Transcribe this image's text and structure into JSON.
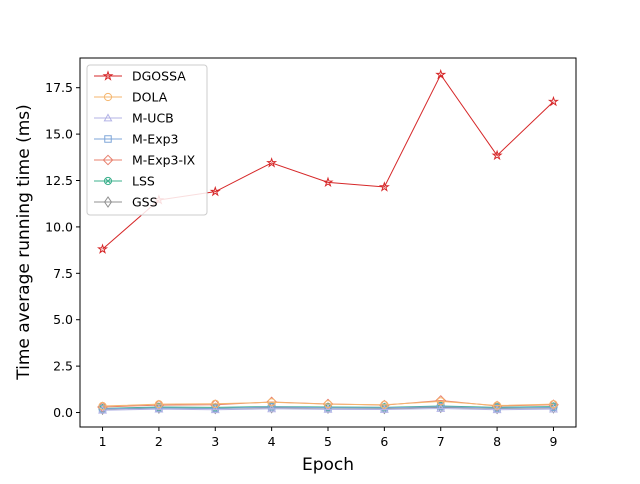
{
  "chart_data": {
    "type": "line",
    "title": "",
    "xlabel": "Epoch",
    "ylabel": "Time average running time (ms)",
    "x": [
      1,
      2,
      3,
      4,
      5,
      6,
      7,
      8,
      9
    ],
    "xticks": [
      "1",
      "2",
      "3",
      "4",
      "5",
      "6",
      "7",
      "8",
      "9"
    ],
    "yticks": [
      "0.0",
      "2.5",
      "5.0",
      "7.5",
      "10.0",
      "12.5",
      "15.0",
      "17.5"
    ],
    "yticks_values": [
      0,
      2.5,
      5,
      7.5,
      10,
      12.5,
      15,
      17.5
    ],
    "xlim": [
      0.6,
      9.4
    ],
    "ylim": [
      -0.78,
      19.1
    ],
    "grid": false,
    "legend_position": "upper-left",
    "series": [
      {
        "name": "DGOSSA",
        "color": "#d62728",
        "marker": "star",
        "values": [
          8.8,
          11.45,
          11.9,
          13.45,
          12.4,
          12.15,
          18.2,
          13.85,
          16.75
        ]
      },
      {
        "name": "DOLA",
        "color": "#f5b66e",
        "marker": "circle",
        "values": [
          0.35,
          0.45,
          0.47,
          0.55,
          0.45,
          0.42,
          0.6,
          0.38,
          0.45
        ]
      },
      {
        "name": "M-UCB",
        "color": "#b3b3e6",
        "marker": "triangle",
        "values": [
          0.12,
          0.18,
          0.15,
          0.2,
          0.17,
          0.16,
          0.22,
          0.15,
          0.18
        ]
      },
      {
        "name": "M-Exp3",
        "color": "#7ea6d8",
        "marker": "square",
        "values": [
          0.2,
          0.25,
          0.22,
          0.3,
          0.26,
          0.25,
          0.32,
          0.24,
          0.28
        ]
      },
      {
        "name": "M-Exp3-IX",
        "color": "#e8806e",
        "marker": "diamond",
        "values": [
          0.3,
          0.4,
          0.42,
          0.57,
          0.46,
          0.4,
          0.65,
          0.35,
          0.42
        ]
      },
      {
        "name": "LSS",
        "color": "#3cb08c",
        "marker": "x-circle",
        "values": [
          0.22,
          0.3,
          0.28,
          0.32,
          0.3,
          0.28,
          0.35,
          0.28,
          0.32
        ]
      },
      {
        "name": "GSS",
        "color": "#909090",
        "marker": "thin-diamond",
        "values": [
          0.18,
          0.24,
          0.22,
          0.26,
          0.24,
          0.22,
          0.28,
          0.22,
          0.25
        ]
      }
    ]
  }
}
